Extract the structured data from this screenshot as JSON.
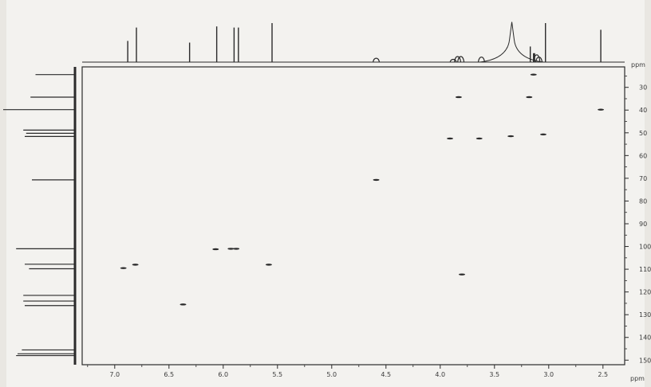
{
  "chart_data": {
    "type": "scatter",
    "title": "",
    "x_unit_label": "ppm",
    "y_unit_label": "ppm",
    "x_axis": {
      "range": [
        7.3,
        2.3
      ],
      "reversed": true,
      "ticks": [
        {
          "value": 7.0,
          "label": "7.0"
        },
        {
          "value": 6.5,
          "label": "6.5"
        },
        {
          "value": 6.0,
          "label": "6.0"
        },
        {
          "value": 5.5,
          "label": "5.5"
        },
        {
          "value": 5.0,
          "label": "5.0"
        },
        {
          "value": 4.5,
          "label": "4.5"
        },
        {
          "value": 4.0,
          "label": "4.0"
        },
        {
          "value": 3.5,
          "label": "3.5"
        },
        {
          "value": 3.0,
          "label": "3.0"
        },
        {
          "value": 2.5,
          "label": "2.5"
        }
      ]
    },
    "y_axis": {
      "range": [
        21,
        152
      ],
      "reversed": true,
      "ticks": [
        {
          "value": 30,
          "label": "30"
        },
        {
          "value": 40,
          "label": "40"
        },
        {
          "value": 50,
          "label": "50"
        },
        {
          "value": 60,
          "label": "60"
        },
        {
          "value": 70,
          "label": "70"
        },
        {
          "value": 80,
          "label": "80"
        },
        {
          "value": 90,
          "label": "90"
        },
        {
          "value": 100,
          "label": "100"
        },
        {
          "value": 110,
          "label": "110"
        },
        {
          "value": 120,
          "label": "120"
        },
        {
          "value": 130,
          "label": "130"
        },
        {
          "value": 140,
          "label": "140"
        },
        {
          "value": 150,
          "label": "150"
        }
      ]
    },
    "grid": false,
    "correlation_peaks": [
      {
        "h": 6.92,
        "c": 109.5
      },
      {
        "h": 6.81,
        "c": 108.0
      },
      {
        "h": 6.37,
        "c": 125.5
      },
      {
        "h": 6.07,
        "c": 101.2
      },
      {
        "h": 5.93,
        "c": 101.0
      },
      {
        "h": 5.88,
        "c": 101.0
      },
      {
        "h": 5.58,
        "c": 108.0
      },
      {
        "h": 4.59,
        "c": 70.7
      },
      {
        "h": 3.91,
        "c": 52.5
      },
      {
        "h": 3.83,
        "c": 34.3
      },
      {
        "h": 3.64,
        "c": 52.5
      },
      {
        "h": 3.35,
        "c": 51.5
      },
      {
        "h": 3.18,
        "c": 34.3
      },
      {
        "h": 3.14,
        "c": 24.4
      },
      {
        "h": 3.05,
        "c": 50.7
      },
      {
        "h": 2.52,
        "c": 39.8
      },
      {
        "h": 3.8,
        "c": 112.3
      }
    ],
    "proton_projection": [
      {
        "ppm": 6.88,
        "height": 0.38
      },
      {
        "ppm": 6.8,
        "height": 0.62
      },
      {
        "ppm": 6.31,
        "height": 0.35
      },
      {
        "ppm": 6.06,
        "height": 0.64
      },
      {
        "ppm": 5.9,
        "height": 0.62
      },
      {
        "ppm": 5.86,
        "height": 0.62
      },
      {
        "ppm": 5.55,
        "height": 0.7
      },
      {
        "ppm": 4.59,
        "height": 0.07
      },
      {
        "ppm": 3.88,
        "height": 0.05
      },
      {
        "ppm": 3.84,
        "height": 0.1
      },
      {
        "ppm": 3.81,
        "height": 0.1
      },
      {
        "ppm": 3.62,
        "height": 0.09
      },
      {
        "ppm": 3.34,
        "height": 0.72,
        "broad": true
      },
      {
        "ppm": 3.17,
        "height": 0.28
      },
      {
        "ppm": 3.14,
        "height": 0.16
      },
      {
        "ppm": 3.13,
        "height": 0.16
      },
      {
        "ppm": 3.11,
        "height": 0.13
      },
      {
        "ppm": 3.09,
        "height": 0.09
      },
      {
        "ppm": 3.03,
        "height": 0.7
      },
      {
        "ppm": 2.52,
        "height": 0.58
      }
    ],
    "carbon_projection": [
      {
        "ppm": 24.4,
        "height": 0.55
      },
      {
        "ppm": 34.3,
        "height": 0.62
      },
      {
        "ppm": 39.8,
        "height": 1.0
      },
      {
        "ppm": 48.8,
        "height": 0.72
      },
      {
        "ppm": 50.2,
        "height": 0.68
      },
      {
        "ppm": 51.6,
        "height": 0.7
      },
      {
        "ppm": 70.7,
        "height": 0.6
      },
      {
        "ppm": 101.0,
        "height": 0.82
      },
      {
        "ppm": 107.8,
        "height": 0.7
      },
      {
        "ppm": 109.8,
        "height": 0.64
      },
      {
        "ppm": 121.5,
        "height": 0.72
      },
      {
        "ppm": 124.0,
        "height": 0.72
      },
      {
        "ppm": 126.0,
        "height": 0.7
      },
      {
        "ppm": 145.5,
        "height": 0.74
      },
      {
        "ppm": 147.2,
        "height": 0.8
      },
      {
        "ppm": 148.0,
        "height": 0.82
      }
    ],
    "colors": {
      "ink": "#2b2b2b",
      "paper": "#f3f2ef",
      "background": "#e9e7e2"
    }
  }
}
